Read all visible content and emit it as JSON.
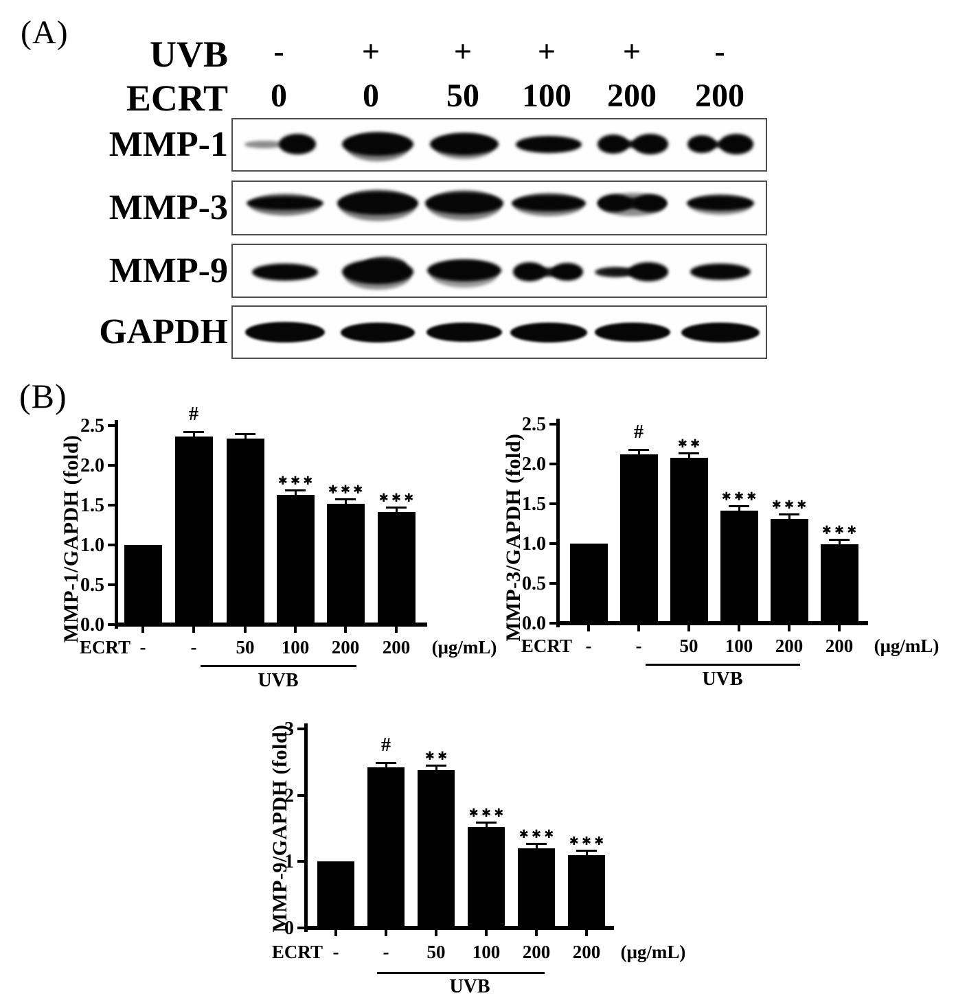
{
  "panel_a": {
    "label": "(A)",
    "header": {
      "uvb_label": "UVB",
      "ecrt_label": "ECRT",
      "uvb_values": [
        "-",
        "+",
        "+",
        "+",
        "+",
        "-"
      ],
      "ecrt_values": [
        "0",
        "0",
        "50",
        "100",
        "200",
        "200"
      ]
    },
    "blots": [
      {
        "target": "MMP-1",
        "lanes": [
          [
            [
              -30,
              0,
              58,
              11,
              0.45
            ],
            [
              18,
              0,
              54,
              30,
              1
            ]
          ],
          [
            [
              0,
              0,
              104,
              34,
              1
            ],
            [
              0,
              4,
              92,
              42,
              0.5
            ]
          ],
          [
            [
              0,
              0,
              100,
              32,
              1
            ],
            [
              0,
              3,
              88,
              38,
              0.45
            ]
          ],
          [
            [
              0,
              0,
              96,
              25,
              1
            ]
          ],
          [
            [
              -28,
              0,
              46,
              28,
              1
            ],
            [
              26,
              0,
              52,
              30,
              1
            ],
            [
              0,
              0,
              88,
              10,
              0.95
            ]
          ],
          [
            [
              -27,
              0,
              42,
              26,
              1
            ],
            [
              23,
              0,
              50,
              30,
              1
            ],
            [
              0,
              0,
              80,
              9,
              0.9
            ]
          ]
        ]
      },
      {
        "target": "MMP-3",
        "lanes": [
          [
            [
              0,
              0,
              112,
              20,
              1
            ],
            [
              0,
              2,
              104,
              32,
              0.55
            ]
          ],
          [
            [
              0,
              0,
              118,
              34,
              1
            ],
            [
              0,
              3,
              112,
              46,
              0.5
            ]
          ],
          [
            [
              0,
              0,
              114,
              32,
              1
            ],
            [
              0,
              3,
              108,
              44,
              0.5
            ]
          ],
          [
            [
              0,
              0,
              108,
              24,
              1
            ],
            [
              0,
              2,
              102,
              34,
              0.5
            ]
          ],
          [
            [
              -26,
              0,
              50,
              26,
              1
            ],
            [
              26,
              0,
              48,
              26,
              1
            ],
            [
              0,
              0,
              100,
              16,
              0.95
            ],
            [
              0,
              2,
              96,
              34,
              0.45
            ]
          ],
          [
            [
              0,
              0,
              98,
              22,
              1
            ],
            [
              0,
              2,
              92,
              30,
              0.45
            ]
          ]
        ]
      },
      {
        "target": "MMP-9",
        "lanes": [
          [
            [
              0,
              0,
              96,
              25,
              1
            ]
          ],
          [
            [
              0,
              0,
              104,
              36,
              1
            ],
            [
              10,
              -9,
              64,
              26,
              0.85
            ],
            [
              0,
              6,
              96,
              40,
              0.45
            ]
          ],
          [
            [
              0,
              -2,
              108,
              32,
              1
            ],
            [
              0,
              3,
              98,
              40,
              0.4
            ]
          ],
          [
            [
              -28,
              0,
              48,
              28,
              1
            ],
            [
              27,
              0,
              46,
              26,
              1
            ],
            [
              0,
              0,
              92,
              13,
              0.95
            ]
          ],
          [
            [
              23,
              0,
              58,
              28,
              1
            ],
            [
              -26,
              0,
              58,
              15,
              0.85
            ],
            [
              0,
              0,
              98,
              10,
              0.7
            ]
          ],
          [
            [
              0,
              0,
              88,
              24,
              1
            ]
          ]
        ]
      },
      {
        "target": "GAPDH",
        "lanes": [
          [
            [
              0,
              0,
              116,
              30,
              1
            ]
          ],
          [
            [
              0,
              0,
              108,
              29,
              1
            ]
          ],
          [
            [
              0,
              0,
              110,
              28,
              1
            ]
          ],
          [
            [
              0,
              0,
              112,
              29,
              1
            ]
          ],
          [
            [
              0,
              0,
              110,
              28,
              1
            ]
          ],
          [
            [
              0,
              0,
              114,
              29,
              1
            ]
          ]
        ]
      }
    ]
  },
  "panel_b": {
    "label": "(B)"
  },
  "chart_data": [
    {
      "type": "bar",
      "title": "",
      "ylabel": "MMP-1/GAPDH (fold)",
      "xlabel": "",
      "ylim": [
        0,
        2.5
      ],
      "yticks": [
        "0.0",
        "0.5",
        "1.0",
        "1.5",
        "2.0",
        "2.5"
      ],
      "x_axis_prefix": "ECRT",
      "categories": [
        "-",
        "-",
        "50",
        "100",
        "200",
        "200"
      ],
      "x_axis_suffix": "(μg/mL)",
      "values": [
        1.0,
        2.36,
        2.34,
        1.63,
        1.52,
        1.41
      ],
      "errors": [
        0,
        0.02,
        0.02,
        0.03,
        0.03,
        0.02
      ],
      "annotations": [
        "",
        "#",
        "",
        "***",
        "***",
        "***"
      ],
      "group_line": {
        "label": "UVB",
        "from_bar": 1,
        "to_bar": 4
      },
      "bar_color": "#000000",
      "grid": false,
      "legend": null
    },
    {
      "type": "bar",
      "title": "",
      "ylabel": "MMP-3/GAPDH (fold)",
      "xlabel": "",
      "ylim": [
        0,
        2.5
      ],
      "yticks": [
        "0.0",
        "0.5",
        "1.0",
        "1.5",
        "2.0",
        "2.5"
      ],
      "x_axis_prefix": "ECRT",
      "categories": [
        "-",
        "-",
        "50",
        "100",
        "200",
        "200"
      ],
      "x_axis_suffix": "(μg/mL)",
      "values": [
        1.0,
        2.12,
        2.08,
        1.41,
        1.31,
        0.99
      ],
      "errors": [
        0,
        0.02,
        0.02,
        0.02,
        0.02,
        0.02
      ],
      "annotations": [
        "",
        "#",
        "**",
        "***",
        "***",
        "***"
      ],
      "group_line": {
        "label": "UVB",
        "from_bar": 1,
        "to_bar": 4
      },
      "bar_color": "#000000",
      "grid": false,
      "legend": null
    },
    {
      "type": "bar",
      "title": "",
      "ylabel": "MMP-9/GAPDH (fold)",
      "xlabel": "",
      "ylim": [
        0,
        3
      ],
      "yticks": [
        "0",
        "1",
        "2",
        "3"
      ],
      "x_axis_prefix": "ECRT",
      "categories": [
        "-",
        "-",
        "50",
        "100",
        "200",
        "200"
      ],
      "x_axis_suffix": "(μg/mL)",
      "values": [
        1.0,
        2.42,
        2.38,
        1.52,
        1.2,
        1.1
      ],
      "errors": [
        0,
        0.02,
        0.02,
        0.02,
        0.02,
        0.02
      ],
      "annotations": [
        "",
        "#",
        "**",
        "***",
        "***",
        "***"
      ],
      "group_line": {
        "label": "UVB",
        "from_bar": 1,
        "to_bar": 4
      },
      "bar_color": "#000000",
      "grid": false,
      "legend": null
    }
  ],
  "colors": {
    "ink": "#000000",
    "background": "#ffffff",
    "box_border": "#4d4d4d"
  }
}
